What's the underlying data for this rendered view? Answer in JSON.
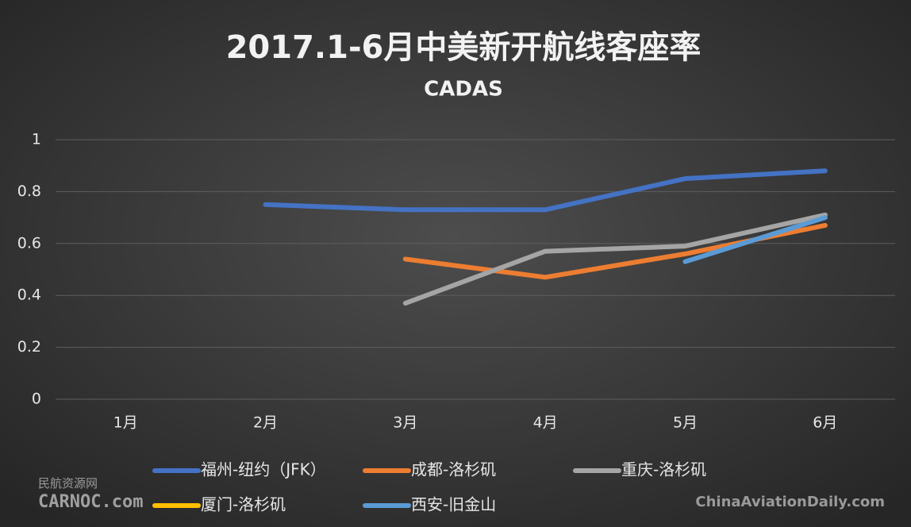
{
  "chart_data": {
    "type": "line",
    "title": "2017.1-6月中美新开航线客座率",
    "subtitle": "CADAS",
    "categories": [
      "1月",
      "2月",
      "3月",
      "4月",
      "5月",
      "6月"
    ],
    "series": [
      {
        "name": "福州-纽约（JFK）",
        "color": "#4472c4",
        "values": [
          null,
          0.75,
          0.73,
          0.73,
          0.85,
          0.88
        ]
      },
      {
        "name": "成都-洛杉矶",
        "color": "#ed7d31",
        "values": [
          null,
          null,
          0.54,
          0.47,
          0.56,
          0.67
        ]
      },
      {
        "name": "重庆-洛杉矶",
        "color": "#a5a5a5",
        "values": [
          null,
          null,
          0.37,
          0.57,
          0.59,
          0.71
        ]
      },
      {
        "name": "厦门-洛杉矶",
        "color": "#ffc000",
        "values": [
          null,
          null,
          null,
          null,
          null,
          null
        ]
      },
      {
        "name": "西安-旧金山",
        "color": "#5b9bd5",
        "values": [
          null,
          null,
          null,
          null,
          0.53,
          0.7
        ]
      }
    ],
    "ylim": [
      0,
      1
    ],
    "yticks": [
      0,
      0.2,
      0.4,
      0.6,
      0.8,
      1
    ],
    "grid": true,
    "legend": "bottom",
    "annotations": [
      "民航资源网",
      "CARNOC.com",
      "ChinaAviationDaily.com"
    ]
  }
}
